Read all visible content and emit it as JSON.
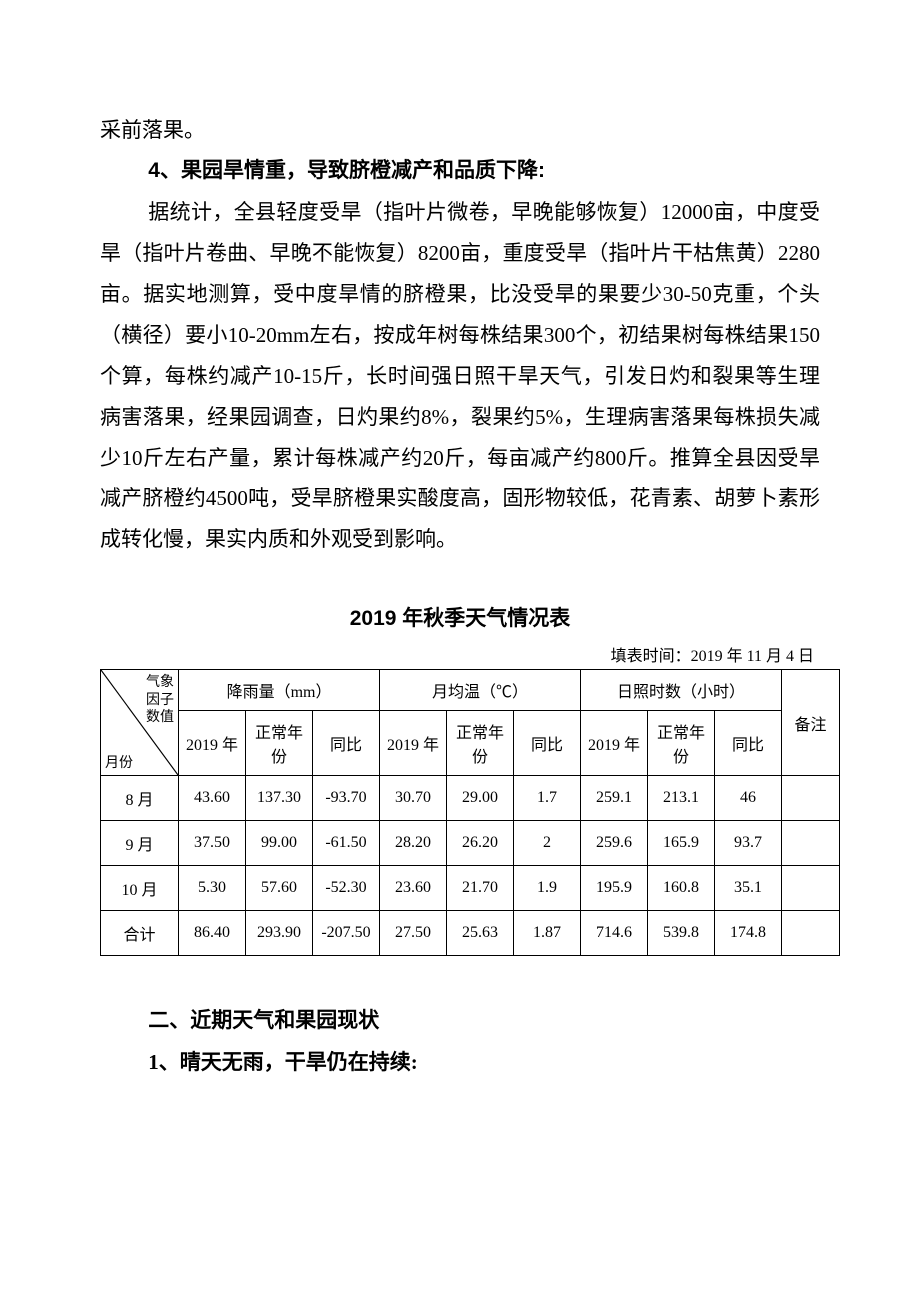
{
  "intro_line": "采前落果。",
  "heading4": "4、果园旱情重，导致脐橙减产和品质下降:",
  "body4": "据统计，全县轻度受旱（指叶片微卷，早晚能够恢复）12000亩，中度受旱（指叶片卷曲、早晚不能恢复）8200亩，重度受旱（指叶片干枯焦黄）2280亩。据实地测算，受中度旱情的脐橙果，比没受旱的果要少30-50克重，个头（横径）要小10-20mm左右，按成年树每株结果300个，初结果树每株结果150个算，每株约减产10-15斤，长时间强日照干旱天气，引发日灼和裂果等生理病害落果，经果园调查，日灼果约8%，裂果约5%，生理病害落果每株损失减少10斤左右产量，累计每株减产约20斤，每亩减产约800斤。推算全县因受旱减产脐橙约4500吨，受旱脐橙果实酸度高，固形物较低，花青素、胡萝卜素形成转化慢，果实内质和外观受到影响。",
  "table": {
    "title": "2019 年秋季天气情况表",
    "fill_date": "填表时间：2019 年 11 月 4 日",
    "diag_top": "气象\n因子\n数值",
    "diag_bottom": "月份",
    "groups": [
      "降雨量（mm）",
      "月均温（℃）",
      "日照时数（小时）"
    ],
    "note_header": "备注",
    "subheaders": [
      "2019 年",
      "正常年份",
      "同比"
    ],
    "rows": [
      {
        "month": "8 月",
        "rain": [
          "43.60",
          "137.30",
          "-93.70"
        ],
        "temp": [
          "30.70",
          "29.00",
          "1.7"
        ],
        "sun": [
          "259.1",
          "213.1",
          "46"
        ],
        "note": ""
      },
      {
        "month": "9 月",
        "rain": [
          "37.50",
          "99.00",
          "-61.50"
        ],
        "temp": [
          "28.20",
          "26.20",
          "2"
        ],
        "sun": [
          "259.6",
          "165.9",
          "93.7"
        ],
        "note": ""
      },
      {
        "month": "10 月",
        "rain": [
          "5.30",
          "57.60",
          "-52.30"
        ],
        "temp": [
          "23.60",
          "21.70",
          "1.9"
        ],
        "sun": [
          "195.9",
          "160.8",
          "35.1"
        ],
        "note": ""
      },
      {
        "month": "合计",
        "rain": [
          "86.40",
          "293.90",
          "-207.50"
        ],
        "temp": [
          "27.50",
          "25.63",
          "1.87"
        ],
        "sun": [
          "714.6",
          "539.8",
          "174.8"
        ],
        "note": ""
      }
    ],
    "border_color": "#000000",
    "font_size": 16
  },
  "section2_heading": "二、近期天气和果园现状",
  "section2_sub1": "1、晴天无雨，干旱仍在持续:"
}
